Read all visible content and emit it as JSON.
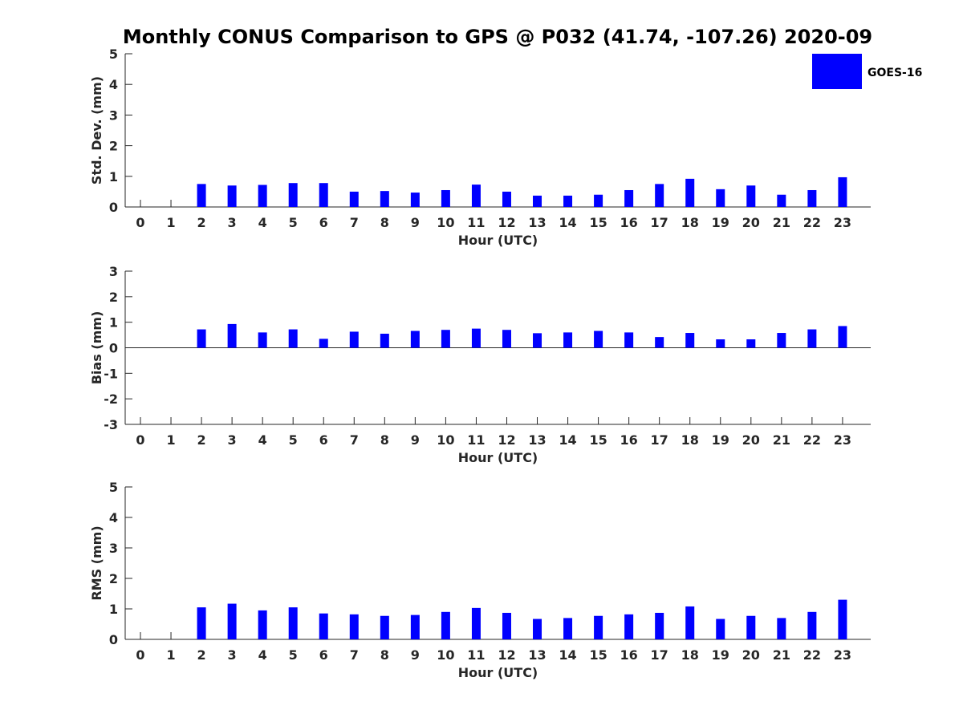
{
  "chart_data": {
    "title": "Monthly CONUS Comparison to GPS @ P032 (41.74, -107.26) 2020-09",
    "legend": {
      "label": "GOES-16",
      "color": "#0000ff",
      "placement": "top-right"
    },
    "bar_color": "#0000ff",
    "categories": [
      "0",
      "1",
      "2",
      "3",
      "4",
      "5",
      "6",
      "7",
      "8",
      "9",
      "10",
      "11",
      "12",
      "13",
      "14",
      "15",
      "16",
      "17",
      "18",
      "19",
      "20",
      "21",
      "22",
      "23"
    ],
    "panels": [
      {
        "type": "bar",
        "ylabel": "Std. Dev. (mm)",
        "xlabel": "Hour (UTC)",
        "ylim": [
          0,
          5
        ],
        "yticks": [
          0,
          1,
          2,
          3,
          4,
          5
        ],
        "values": [
          null,
          null,
          0.75,
          0.7,
          0.72,
          0.78,
          0.78,
          0.5,
          0.52,
          0.47,
          0.55,
          0.73,
          0.5,
          0.37,
          0.37,
          0.4,
          0.55,
          0.75,
          0.92,
          0.58,
          0.7,
          0.4,
          0.55,
          0.97
        ]
      },
      {
        "type": "bar",
        "ylabel": "Bias (mm)",
        "xlabel": "Hour (UTC)",
        "ylim": [
          -3,
          3
        ],
        "yticks": [
          -3,
          -2,
          -1,
          0,
          1,
          2,
          3
        ],
        "values": [
          null,
          null,
          0.72,
          0.93,
          0.6,
          0.72,
          0.35,
          0.63,
          0.55,
          0.66,
          0.7,
          0.75,
          0.7,
          0.57,
          0.6,
          0.66,
          0.6,
          0.42,
          0.58,
          0.33,
          0.33,
          0.58,
          0.72,
          0.85
        ]
      },
      {
        "type": "bar",
        "ylabel": "RMS (mm)",
        "xlabel": "Hour (UTC)",
        "ylim": [
          0,
          5
        ],
        "yticks": [
          0,
          1,
          2,
          3,
          4,
          5
        ],
        "values": [
          null,
          null,
          1.05,
          1.17,
          0.95,
          1.05,
          0.85,
          0.82,
          0.77,
          0.8,
          0.9,
          1.03,
          0.87,
          0.67,
          0.7,
          0.77,
          0.82,
          0.87,
          1.08,
          0.67,
          0.77,
          0.7,
          0.9,
          1.3
        ]
      }
    ]
  }
}
